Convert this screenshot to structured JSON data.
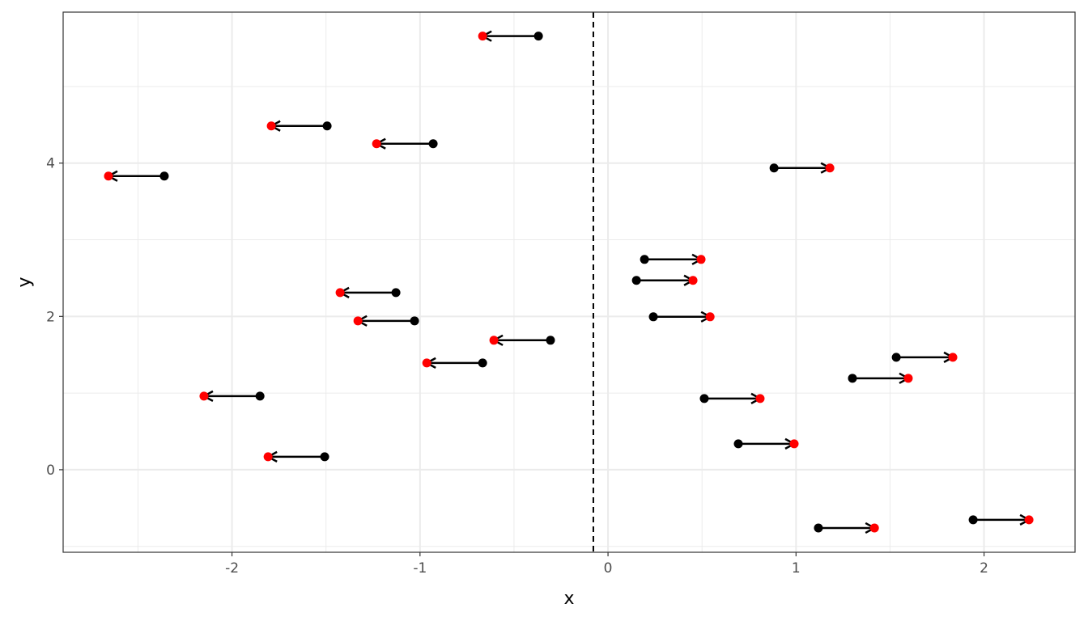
{
  "chart_data": {
    "type": "scatter",
    "xlabel": "x",
    "ylabel": "y",
    "xlim": [
      -2.898,
      2.484
    ],
    "ylim": [
      -1.077,
      5.97
    ],
    "x_ticks": [
      -2,
      -1,
      0,
      1,
      2
    ],
    "y_ticks": [
      0,
      2,
      4
    ],
    "grid": true,
    "vline": {
      "x": -0.078,
      "style": "dashed",
      "color": "#000000"
    },
    "start_color": "#000000",
    "end_color": "#ff0000",
    "arrows": [
      {
        "y": 5.657,
        "x_start": -0.37,
        "x_end": -0.667
      },
      {
        "y": 4.485,
        "x_start": -1.494,
        "x_end": -1.791
      },
      {
        "y": 4.253,
        "x_start": -0.93,
        "x_end": -1.231
      },
      {
        "y": 3.831,
        "x_start": -2.36,
        "x_end": -2.657
      },
      {
        "y": 3.937,
        "x_start": 0.883,
        "x_end": 1.18
      },
      {
        "y": 2.744,
        "x_start": 0.194,
        "x_end": 0.495
      },
      {
        "y": 2.47,
        "x_start": 0.151,
        "x_end": 0.452
      },
      {
        "y": 2.311,
        "x_start": -1.128,
        "x_end": -1.425
      },
      {
        "y": 1.995,
        "x_start": 0.241,
        "x_end": 0.543
      },
      {
        "y": 1.942,
        "x_start": -1.029,
        "x_end": -1.33
      },
      {
        "y": 1.689,
        "x_start": -0.306,
        "x_end": -0.607
      },
      {
        "y": 1.393,
        "x_start": -0.667,
        "x_end": -0.964
      },
      {
        "y": 1.467,
        "x_start": 1.533,
        "x_end": 1.834
      },
      {
        "y": 1.193,
        "x_start": 1.3,
        "x_end": 1.597
      },
      {
        "y": 0.96,
        "x_start": -1.851,
        "x_end": -2.149
      },
      {
        "y": 0.929,
        "x_start": 0.512,
        "x_end": 0.809
      },
      {
        "y": 0.338,
        "x_start": 0.693,
        "x_end": 0.99
      },
      {
        "y": 0.169,
        "x_start": -1.507,
        "x_end": -1.808
      },
      {
        "y": -0.76,
        "x_start": 1.119,
        "x_end": 1.417
      },
      {
        "y": -0.654,
        "x_start": 1.942,
        "x_end": 2.239
      }
    ]
  }
}
